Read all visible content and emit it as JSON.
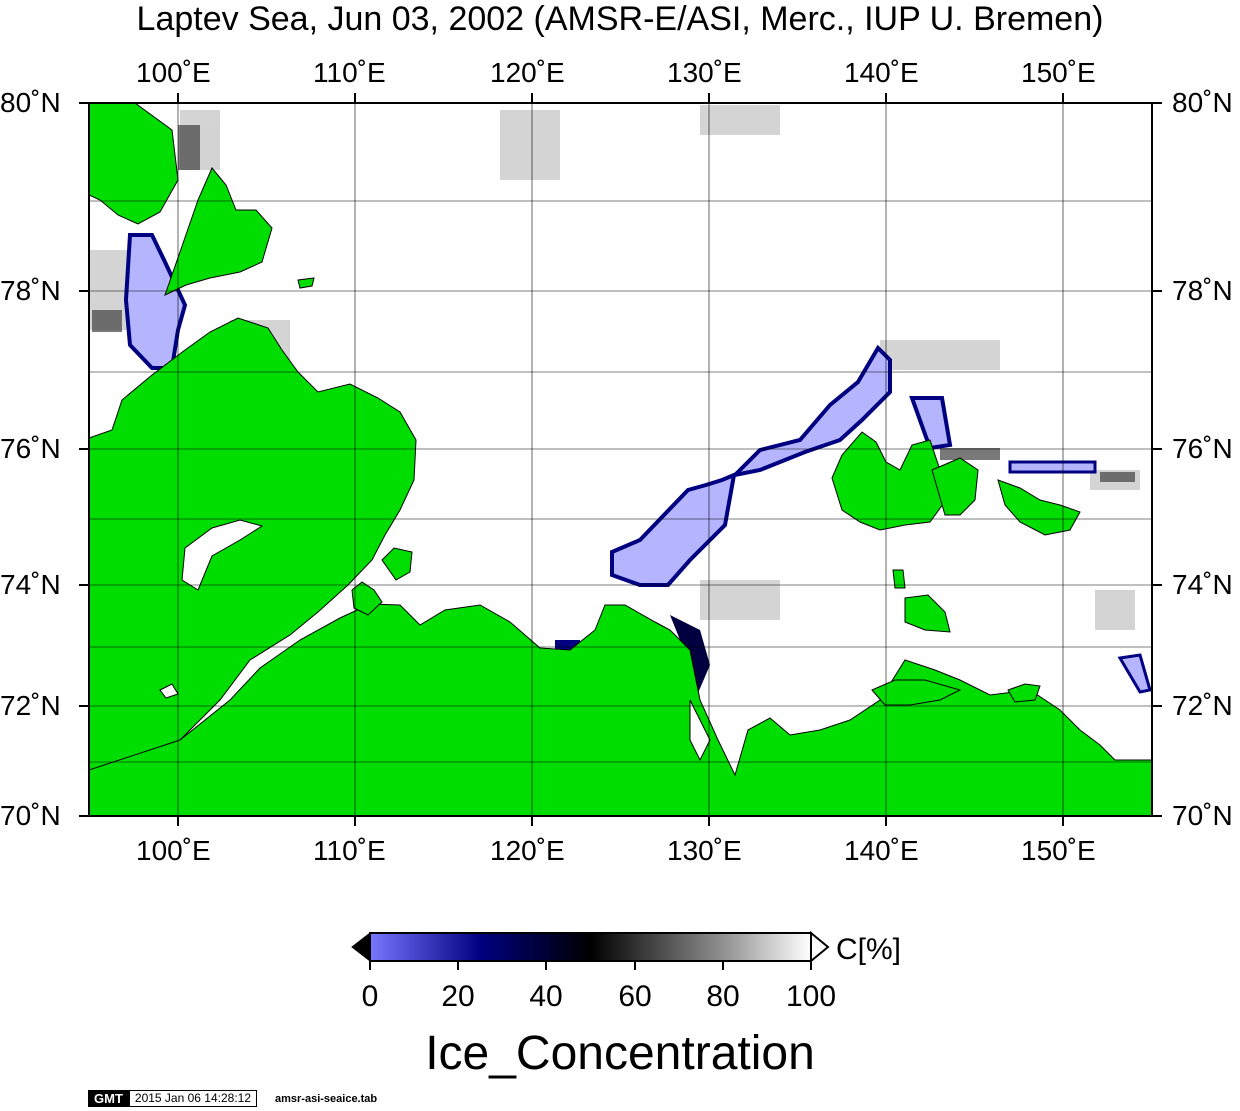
{
  "title": "Laptev Sea, Jun 03, 2002 (AMSR-E/ASI, Merc., IUP U. Bremen)",
  "map": {
    "lon_ticks": [
      "100˚E",
      "110˚E",
      "120˚E",
      "130˚E",
      "140˚E",
      "150˚E"
    ],
    "lat_ticks": [
      "80˚N",
      "78˚N",
      "76˚N",
      "74˚N",
      "72˚N",
      "70˚N"
    ],
    "lon_range": [
      95,
      155
    ],
    "lat_range": [
      70,
      80
    ],
    "colors": {
      "land": "#00dd00",
      "ocean_open": "#ffffff",
      "low_concentration": "#b4b4ff",
      "grid": "#000000"
    }
  },
  "colorbar": {
    "unit": "C[%]",
    "labels": [
      "0",
      "20",
      "40",
      "60",
      "80",
      "100"
    ],
    "range": [
      0,
      100
    ],
    "stops": [
      "#7777ff",
      "#000080",
      "#000000",
      "#808080",
      "#ffffff"
    ]
  },
  "variable": "Ice_Concentration",
  "footer": {
    "logo": "GMT",
    "timestamp": "2015 Jan 06 14:28:12",
    "filename": "amsr-asi-seaice.tab"
  }
}
